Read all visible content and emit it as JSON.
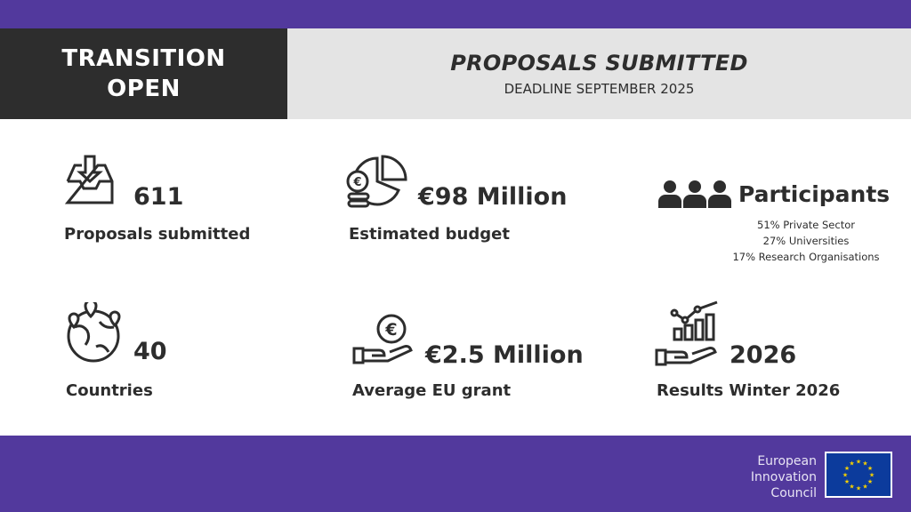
{
  "header": {
    "left_line1": "TRANSITION",
    "left_line2": "OPEN",
    "title": "PROPOSALS SUBMITTED",
    "subtitle": "DEADLINE SEPTEMBER 2025"
  },
  "stats": [
    {
      "value": "611",
      "label": "Proposals submitted",
      "icon": "inbox-download-icon"
    },
    {
      "value": "€98 Million",
      "label": "Estimated budget",
      "icon": "pie-coins-icon"
    },
    {
      "value": "Participants",
      "details": [
        "51% Private Sector",
        "27% Universities",
        "17% Research Organisations"
      ],
      "icon": "people-icon"
    },
    {
      "value": "40",
      "label": "Countries",
      "icon": "globe-pins-icon"
    },
    {
      "value": "€2.5 Million",
      "label": "Average EU grant",
      "icon": "hand-euro-icon"
    },
    {
      "value": "2026",
      "label": "Results Winter 2026",
      "icon": "hand-chart-icon"
    }
  ],
  "footer": {
    "org_line1": "European",
    "org_line2": "Innovation",
    "org_line3": "Council"
  },
  "colors": {
    "purple": "#52399d",
    "dark": "#2d2d2d",
    "light_gray": "#e4e4e4",
    "flag_blue": "#0c3b9c",
    "flag_star": "#f5d000"
  }
}
